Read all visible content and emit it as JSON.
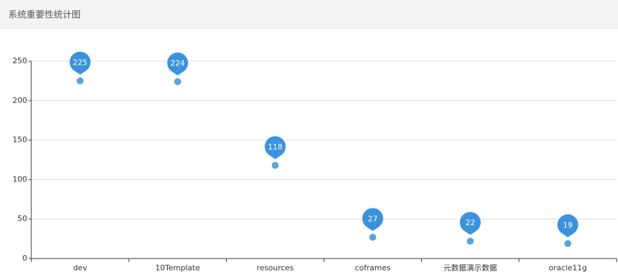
{
  "chart_data": {
    "type": "scatter",
    "title": "系统重要性统计图",
    "categories": [
      "dev",
      "10Template",
      "resources",
      "coframes",
      "元数据演示数据",
      "oracle11g"
    ],
    "values": [
      225,
      224,
      118,
      27,
      22,
      19
    ],
    "color": "#3b92dc",
    "ylim": [
      0,
      250
    ],
    "yticks": [
      0,
      50,
      100,
      150,
      200,
      250
    ],
    "grid": true
  }
}
